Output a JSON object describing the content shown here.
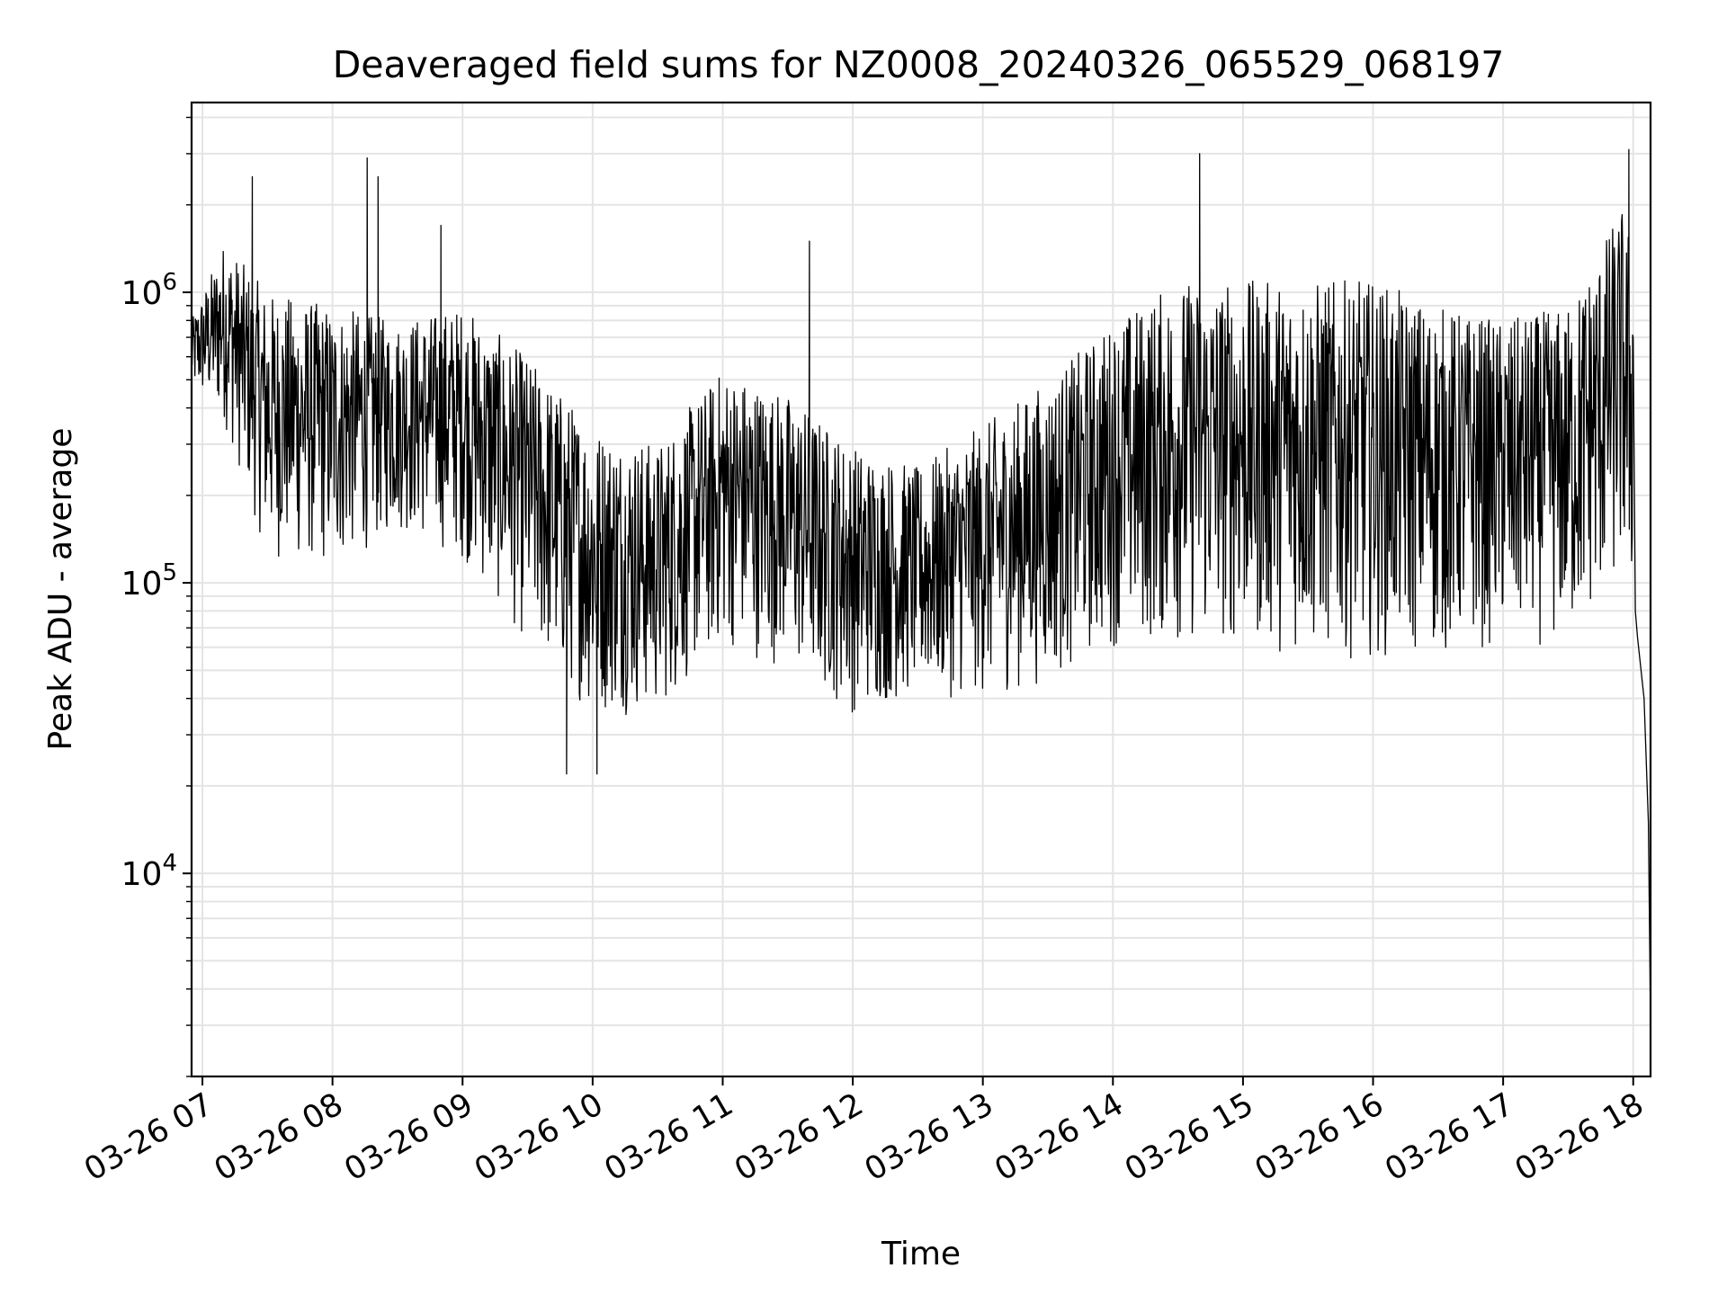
{
  "chart_data": {
    "type": "line",
    "title": "Deaveraged field sums for NZ0008_20240326_065529_068197",
    "xlabel": "Time",
    "ylabel": "Peak ADU - average",
    "yscale": "log",
    "ylim": [
      2000,
      4500000
    ],
    "xlim": [
      "2024-03-26 06:55",
      "2024-03-26 18:08"
    ],
    "grid": true,
    "x_ticks": [
      "03-26 07",
      "03-26 08",
      "03-26 09",
      "03-26 10",
      "03-26 11",
      "03-26 12",
      "03-26 13",
      "03-26 14",
      "03-26 15",
      "03-26 16",
      "03-26 17",
      "03-26 18"
    ],
    "y_ticks": [
      {
        "value": 10000,
        "base": "10",
        "exp": "4"
      },
      {
        "value": 100000,
        "base": "10",
        "exp": "5"
      },
      {
        "value": 1000000,
        "base": "10",
        "exp": "6"
      }
    ],
    "line_color": "#000000",
    "series": [
      {
        "name": "",
        "note_values_are_approximate_envelope": true,
        "x": [
          "2024-03-26 06:55",
          "2024-03-26 07:10",
          "2024-03-26 07:30",
          "2024-03-26 08:00",
          "2024-03-26 08:30",
          "2024-03-26 09:00",
          "2024-03-26 09:30",
          "2024-03-26 10:00",
          "2024-03-26 10:30",
          "2024-03-26 11:00",
          "2024-03-26 11:30",
          "2024-03-26 12:00",
          "2024-03-26 12:30",
          "2024-03-26 13:00",
          "2024-03-26 13:30",
          "2024-03-26 14:00",
          "2024-03-26 14:30",
          "2024-03-26 15:00",
          "2024-03-26 15:30",
          "2024-03-26 16:00",
          "2024-03-26 16:30",
          "2024-03-26 17:00",
          "2024-03-26 17:30",
          "2024-03-26 17:55",
          "2024-03-26 18:00",
          "2024-03-26 18:08"
        ],
        "high": [
          800000,
          1500000,
          1000000,
          900000,
          800000,
          900000,
          600000,
          350000,
          300000,
          550000,
          450000,
          300000,
          250000,
          350000,
          500000,
          800000,
          1100000,
          1100000,
          1100000,
          1100000,
          900000,
          800000,
          900000,
          2000000,
          1500000,
          30000
        ],
        "low": [
          450000,
          350000,
          120000,
          110000,
          150000,
          120000,
          60000,
          35000,
          35000,
          60000,
          50000,
          35000,
          40000,
          40000,
          45000,
          60000,
          60000,
          60000,
          55000,
          55000,
          55000,
          60000,
          60000,
          100000,
          80000,
          3000
        ],
        "spikes": [
          {
            "x": "2024-03-26 07:23",
            "y": 2500000
          },
          {
            "x": "2024-03-26 08:16",
            "y": 2900000
          },
          {
            "x": "2024-03-26 08:21",
            "y": 2500000
          },
          {
            "x": "2024-03-26 08:50",
            "y": 1700000
          },
          {
            "x": "2024-03-26 11:40",
            "y": 1500000
          },
          {
            "x": "2024-03-26 14:40",
            "y": 3000000
          },
          {
            "x": "2024-03-26 17:58",
            "y": 3100000
          },
          {
            "x": "2024-03-26 09:48",
            "y": 22000
          },
          {
            "x": "2024-03-26 10:02",
            "y": 22000
          }
        ]
      }
    ]
  }
}
